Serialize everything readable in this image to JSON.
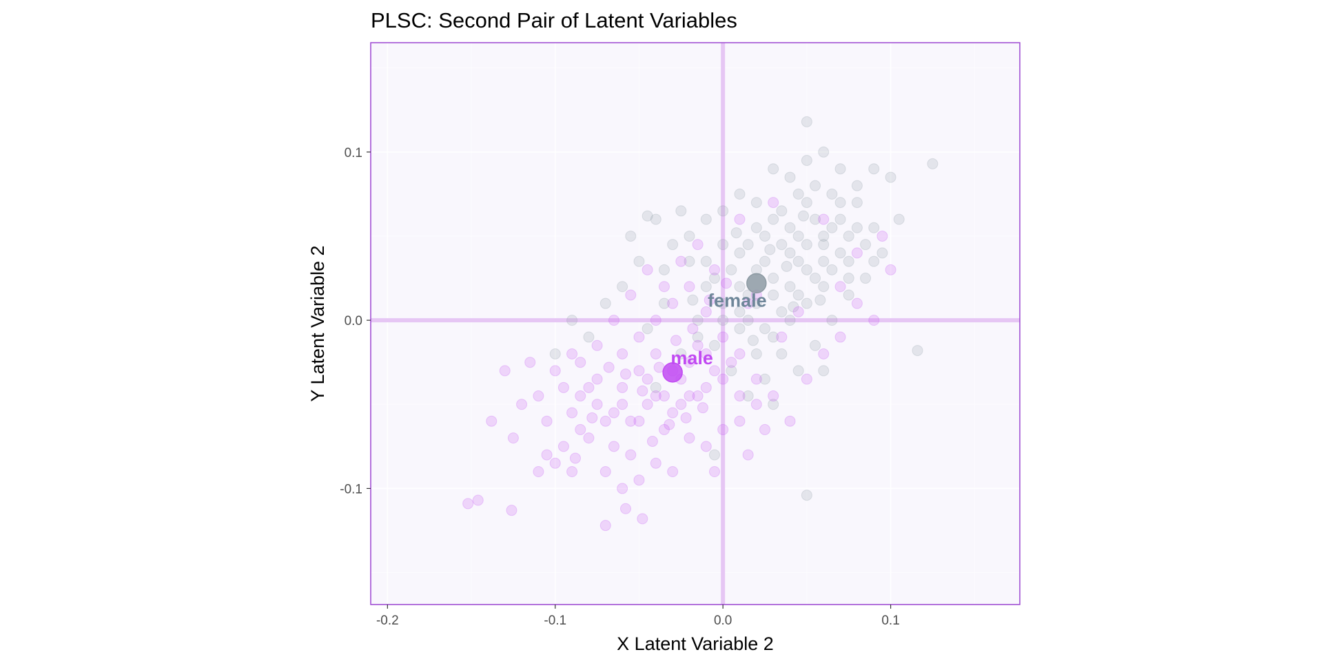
{
  "chart_data": {
    "type": "scatter",
    "title": "PLSC: Second Pair of Latent Variables",
    "xlabel": "X Latent Variable 2",
    "ylabel": "Y Latent Variable 2",
    "xlim": [
      -0.21,
      0.177
    ],
    "ylim": [
      -0.169,
      0.165
    ],
    "x_ticks": [
      -0.2,
      -0.1,
      0.0,
      0.1
    ],
    "x_tick_labels": [
      "-0.2",
      "-0.1",
      "0.0",
      "0.1"
    ],
    "y_ticks": [
      -0.1,
      0.0,
      0.1
    ],
    "y_tick_labels": [
      "-0.1",
      "0.0",
      "0.1"
    ],
    "grid": true,
    "legend": "none",
    "colors": {
      "panel_background": "#f9f7fd",
      "panel_border": "#9b45d1",
      "grid_major": "#ffffff",
      "zero_line": "#e6c6f4",
      "female": "#8d9aa3",
      "male": "#c14af2",
      "female_label": "#6e8699",
      "male_label": "#c14af2"
    },
    "series": [
      {
        "name": "female",
        "mean": [
          0.02,
          0.022
        ],
        "points": [
          [
            0.02,
            0.03
          ],
          [
            0.04,
            0.055
          ],
          [
            0.05,
            0.07
          ],
          [
            0.06,
            0.045
          ],
          [
            0.03,
            0.025
          ],
          [
            0.01,
            0.04
          ],
          [
            0.035,
            0.065
          ],
          [
            0.055,
            0.08
          ],
          [
            0.07,
            0.06
          ],
          [
            0.045,
            0.035
          ],
          [
            0.015,
            0.015
          ],
          [
            0.025,
            0.05
          ],
          [
            0.065,
            0.075
          ],
          [
            0.08,
            0.07
          ],
          [
            0.09,
            0.09
          ],
          [
            0.1,
            0.085
          ],
          [
            0.105,
            0.06
          ],
          [
            0.095,
            0.04
          ],
          [
            0.075,
            0.035
          ],
          [
            0.06,
            0.02
          ],
          [
            0.05,
            0.01
          ],
          [
            0.04,
            0.0
          ],
          [
            0.03,
            -0.01
          ],
          [
            0.02,
            -0.02
          ],
          [
            0.01,
            -0.005
          ],
          [
            0.0,
            0.01
          ],
          [
            -0.01,
            0.02
          ],
          [
            -0.02,
            0.035
          ],
          [
            -0.03,
            0.045
          ],
          [
            -0.04,
            0.06
          ],
          [
            -0.05,
            0.035
          ],
          [
            -0.06,
            0.02
          ],
          [
            -0.07,
            0.01
          ],
          [
            -0.08,
            -0.01
          ],
          [
            -0.09,
            0.0
          ],
          [
            -0.1,
            -0.02
          ],
          [
            -0.035,
            0.01
          ],
          [
            -0.045,
            -0.005
          ],
          [
            -0.015,
            -0.01
          ],
          [
            0.005,
            -0.03
          ],
          [
            0.015,
            -0.045
          ],
          [
            0.025,
            -0.035
          ],
          [
            0.035,
            -0.02
          ],
          [
            0.045,
            -0.03
          ],
          [
            0.055,
            -0.015
          ],
          [
            0.065,
            0.0
          ],
          [
            0.075,
            0.015
          ],
          [
            0.085,
            0.025
          ],
          [
            0.09,
            0.055
          ],
          [
            0.07,
            0.09
          ],
          [
            0.06,
            0.1
          ],
          [
            0.05,
            0.095
          ],
          [
            0.04,
            0.085
          ],
          [
            0.03,
            0.09
          ],
          [
            0.02,
            0.07
          ],
          [
            0.01,
            0.075
          ],
          [
            0.0,
            0.065
          ],
          [
            -0.01,
            0.06
          ],
          [
            -0.02,
            0.05
          ],
          [
            -0.025,
            0.065
          ],
          [
            0.045,
            0.05
          ],
          [
            0.035,
            0.045
          ],
          [
            0.025,
            0.035
          ],
          [
            0.015,
            0.045
          ],
          [
            0.005,
            0.03
          ],
          [
            -0.005,
            0.025
          ],
          [
            0.055,
            0.06
          ],
          [
            0.065,
            0.055
          ],
          [
            0.075,
            0.05
          ],
          [
            0.085,
            0.045
          ],
          [
            0.03,
            0.06
          ],
          [
            0.04,
            0.04
          ],
          [
            0.05,
            0.045
          ],
          [
            0.06,
            0.035
          ],
          [
            0.07,
            0.04
          ],
          [
            0.02,
            0.055
          ],
          [
            0.01,
            0.02
          ],
          [
            0.0,
            0.045
          ],
          [
            -0.01,
            0.035
          ],
          [
            0.045,
            0.075
          ],
          [
            0.125,
            0.093
          ],
          [
            0.116,
            -0.018
          ],
          [
            0.05,
            -0.104
          ],
          [
            0.05,
            0.118
          ],
          [
            -0.045,
            0.062
          ],
          [
            -0.055,
            0.05
          ],
          [
            -0.035,
            0.03
          ],
          [
            0.0,
            0.0
          ],
          [
            0.01,
            0.005
          ],
          [
            0.02,
            0.01
          ],
          [
            0.03,
            0.015
          ],
          [
            0.04,
            0.02
          ],
          [
            0.05,
            0.03
          ],
          [
            0.06,
            0.05
          ],
          [
            0.07,
            0.07
          ],
          [
            0.08,
            0.08
          ],
          [
            0.055,
            0.025
          ],
          [
            0.065,
            0.03
          ],
          [
            0.035,
            0.005
          ],
          [
            0.025,
            -0.005
          ],
          [
            0.015,
            0.0
          ],
          [
            -0.005,
            -0.015
          ],
          [
            -0.015,
            0.0
          ],
          [
            0.045,
            0.015
          ],
          [
            0.08,
            0.055
          ],
          [
            0.09,
            0.035
          ],
          [
            0.075,
            0.025
          ],
          [
            0.028,
            0.042
          ],
          [
            0.038,
            0.032
          ],
          [
            0.048,
            0.062
          ],
          [
            -0.025,
            -0.02
          ],
          [
            -0.04,
            -0.04
          ],
          [
            -0.005,
            -0.08
          ],
          [
            0.03,
            -0.05
          ],
          [
            0.06,
            -0.03
          ],
          [
            0.042,
            0.008
          ],
          [
            0.018,
            -0.012
          ],
          [
            0.008,
            0.052
          ],
          [
            -0.018,
            0.012
          ],
          [
            0.058,
            0.012
          ]
        ]
      },
      {
        "name": "male",
        "mean": [
          -0.03,
          -0.031
        ],
        "points": [
          [
            -0.03,
            -0.03
          ],
          [
            -0.04,
            -0.045
          ],
          [
            -0.05,
            -0.06
          ],
          [
            -0.06,
            -0.04
          ],
          [
            -0.02,
            -0.025
          ],
          [
            -0.01,
            -0.04
          ],
          [
            -0.035,
            -0.065
          ],
          [
            -0.055,
            -0.08
          ],
          [
            -0.07,
            -0.06
          ],
          [
            -0.045,
            -0.035
          ],
          [
            -0.015,
            -0.015
          ],
          [
            -0.025,
            -0.05
          ],
          [
            -0.065,
            -0.075
          ],
          [
            -0.08,
            -0.07
          ],
          [
            -0.09,
            -0.09
          ],
          [
            -0.1,
            -0.085
          ],
          [
            -0.105,
            -0.06
          ],
          [
            -0.095,
            -0.04
          ],
          [
            -0.075,
            -0.035
          ],
          [
            -0.06,
            -0.02
          ],
          [
            -0.05,
            -0.01
          ],
          [
            -0.04,
            0.0
          ],
          [
            -0.03,
            0.01
          ],
          [
            -0.02,
            0.02
          ],
          [
            -0.01,
            0.005
          ],
          [
            0.0,
            -0.01
          ],
          [
            0.01,
            -0.02
          ],
          [
            0.02,
            -0.035
          ],
          [
            0.03,
            -0.045
          ],
          [
            0.04,
            -0.06
          ],
          [
            0.05,
            -0.035
          ],
          [
            0.06,
            -0.02
          ],
          [
            0.07,
            -0.01
          ],
          [
            0.08,
            0.01
          ],
          [
            0.09,
            0.0
          ],
          [
            0.1,
            0.03
          ],
          [
            0.035,
            -0.01
          ],
          [
            0.045,
            0.005
          ],
          [
            0.015,
            0.01
          ],
          [
            -0.005,
            0.03
          ],
          [
            -0.015,
            0.045
          ],
          [
            -0.025,
            0.035
          ],
          [
            -0.035,
            0.02
          ],
          [
            -0.045,
            0.03
          ],
          [
            -0.055,
            0.015
          ],
          [
            -0.065,
            0.0
          ],
          [
            -0.075,
            -0.015
          ],
          [
            -0.085,
            -0.025
          ],
          [
            -0.09,
            -0.055
          ],
          [
            -0.07,
            -0.09
          ],
          [
            -0.06,
            -0.1
          ],
          [
            -0.05,
            -0.095
          ],
          [
            -0.04,
            -0.085
          ],
          [
            -0.03,
            -0.09
          ],
          [
            -0.02,
            -0.07
          ],
          [
            -0.01,
            -0.075
          ],
          [
            0.0,
            -0.065
          ],
          [
            0.01,
            -0.06
          ],
          [
            0.02,
            -0.05
          ],
          [
            0.025,
            -0.065
          ],
          [
            -0.045,
            -0.05
          ],
          [
            -0.035,
            -0.045
          ],
          [
            -0.025,
            -0.035
          ],
          [
            -0.015,
            -0.045
          ],
          [
            -0.005,
            -0.03
          ],
          [
            0.005,
            -0.025
          ],
          [
            -0.055,
            -0.06
          ],
          [
            -0.065,
            -0.055
          ],
          [
            -0.075,
            -0.05
          ],
          [
            -0.085,
            -0.045
          ],
          [
            -0.152,
            -0.109
          ],
          [
            -0.146,
            -0.107
          ],
          [
            -0.126,
            -0.113
          ],
          [
            -0.11,
            -0.09
          ],
          [
            -0.12,
            -0.05
          ],
          [
            -0.13,
            -0.03
          ],
          [
            -0.115,
            -0.025
          ],
          [
            -0.125,
            -0.07
          ],
          [
            -0.138,
            -0.06
          ],
          [
            -0.105,
            -0.08
          ],
          [
            -0.07,
            -0.122
          ],
          [
            -0.058,
            -0.112
          ],
          [
            -0.048,
            -0.118
          ],
          [
            0.01,
            0.06
          ],
          [
            0.03,
            0.07
          ],
          [
            0.06,
            0.06
          ],
          [
            0.07,
            0.02
          ],
          [
            0.08,
            0.04
          ],
          [
            0.095,
            0.05
          ],
          [
            0.02,
            0.015
          ],
          [
            -0.04,
            -0.02
          ],
          [
            -0.05,
            -0.03
          ],
          [
            -0.06,
            -0.05
          ],
          [
            -0.03,
            -0.055
          ],
          [
            -0.02,
            -0.045
          ],
          [
            -0.01,
            -0.02
          ],
          [
            0.0,
            -0.035
          ],
          [
            0.01,
            -0.045
          ],
          [
            0.015,
            -0.08
          ],
          [
            -0.005,
            -0.09
          ],
          [
            -0.08,
            -0.04
          ],
          [
            -0.085,
            -0.065
          ],
          [
            -0.095,
            -0.075
          ],
          [
            -0.11,
            -0.045
          ],
          [
            -0.1,
            -0.03
          ],
          [
            -0.09,
            -0.02
          ],
          [
            -0.028,
            -0.012
          ],
          [
            -0.038,
            -0.028
          ],
          [
            -0.048,
            -0.042
          ],
          [
            -0.058,
            -0.032
          ],
          [
            -0.018,
            -0.005
          ],
          [
            -0.008,
            0.012
          ],
          [
            0.002,
            0.022
          ],
          [
            -0.068,
            -0.028
          ],
          [
            -0.078,
            -0.058
          ],
          [
            -0.088,
            -0.082
          ],
          [
            -0.042,
            -0.072
          ],
          [
            -0.032,
            -0.062
          ],
          [
            -0.022,
            -0.058
          ],
          [
            -0.012,
            -0.052
          ]
        ]
      }
    ]
  }
}
